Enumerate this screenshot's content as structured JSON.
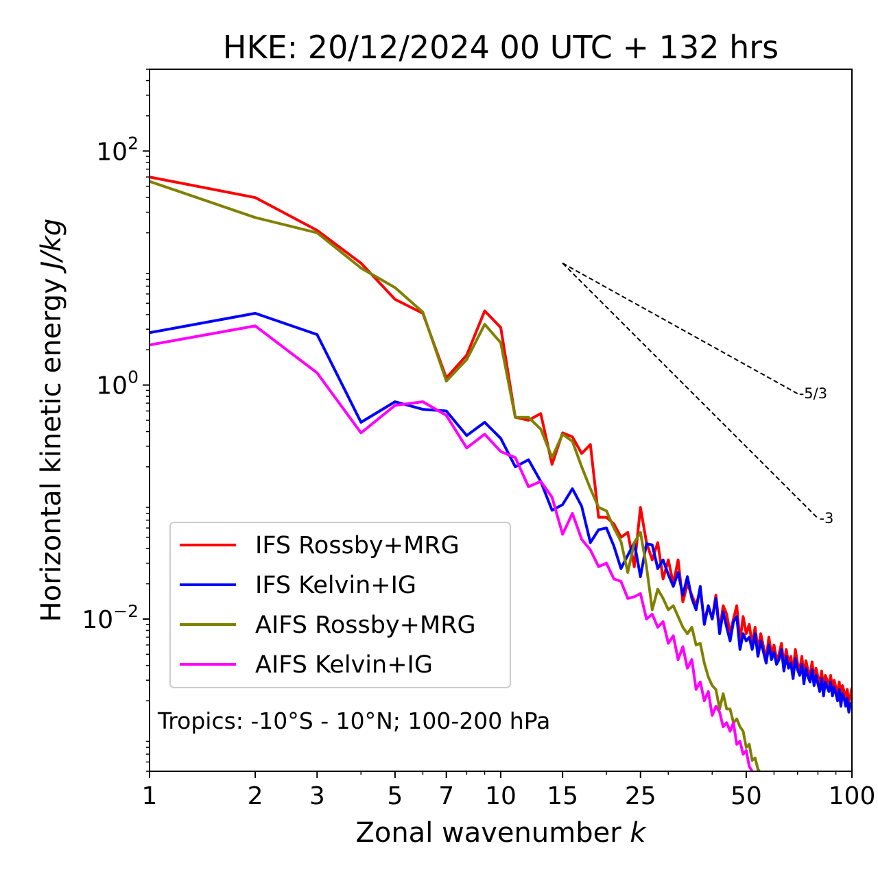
{
  "chart_data": {
    "type": "line",
    "title": "HKE: 20/12/2024 00 UTC + 132 hrs",
    "xlabel": "Zonal wavenumber ",
    "xlabel_italic": "k",
    "ylabel": "Horizontal kinetic energy ",
    "ylabel_italic": "J/kg",
    "xscale": "log",
    "yscale": "log",
    "xlim": [
      1,
      100
    ],
    "ylim": [
      0.0005,
      500
    ],
    "xticks": [
      1,
      2,
      3,
      5,
      7,
      10,
      15,
      25,
      50,
      100
    ],
    "xtick_labels": [
      "1",
      "2",
      "3",
      "5",
      "7",
      "10",
      "15",
      "25",
      "50",
      "100"
    ],
    "yticks": [
      0.01,
      1,
      100
    ],
    "ytick_labels": [
      {
        "base": "10",
        "exp": "−2"
      },
      {
        "base": "10",
        "exp": "0"
      },
      {
        "base": "10",
        "exp": "2"
      }
    ],
    "grid": false,
    "legend_position": "lower-left",
    "annotation": "Tropics: -10°S - 10°N; 100-200 hPa",
    "reference_slopes": [
      {
        "label": "-5/3",
        "slope": -1.6667,
        "x_start": 15,
        "x_end": 70,
        "y_start": 11
      },
      {
        "label": "-3",
        "slope": -3,
        "x_start": 15,
        "x_end": 80,
        "y_start": 11
      }
    ],
    "series": [
      {
        "name": "IFS Rossby+MRG",
        "color": "#ff0000",
        "x": [
          1,
          2,
          3,
          4,
          5,
          6,
          7,
          8,
          9,
          10,
          11,
          12,
          13,
          14,
          15,
          16,
          17,
          18,
          19,
          20,
          21,
          22,
          23,
          24,
          25,
          26,
          27,
          28,
          29,
          30,
          31,
          32,
          33,
          34,
          35,
          36,
          37,
          38,
          39,
          40,
          41,
          42,
          43,
          44,
          45,
          46,
          47,
          48,
          49,
          50,
          51,
          52,
          53,
          54,
          55,
          56,
          57,
          58,
          59,
          60,
          61,
          62,
          63,
          64,
          65,
          66,
          67,
          68,
          69,
          70,
          71,
          72,
          73,
          74,
          75,
          76,
          77,
          78,
          79,
          80,
          81,
          82,
          83,
          84,
          85,
          86,
          87,
          88,
          89,
          90,
          91,
          92,
          93,
          94,
          95,
          96,
          97,
          98,
          99,
          100
        ],
        "y": [
          60,
          40,
          21,
          11,
          5.4,
          4.1,
          1.15,
          1.8,
          4.3,
          3.1,
          0.53,
          0.5,
          0.57,
          0.21,
          0.39,
          0.36,
          0.26,
          0.31,
          0.074,
          0.074,
          0.065,
          0.05,
          0.055,
          0.028,
          0.09,
          0.045,
          0.032,
          0.045,
          0.022,
          0.032,
          0.02,
          0.032,
          0.014,
          0.02,
          0.016,
          0.013,
          0.018,
          0.0095,
          0.013,
          0.01,
          0.016,
          0.008,
          0.013,
          0.011,
          0.0075,
          0.01,
          0.013,
          0.0065,
          0.0105,
          0.0075,
          0.009,
          0.006,
          0.0085,
          0.0055,
          0.0075,
          0.0058,
          0.0045,
          0.007,
          0.005,
          0.006,
          0.0045,
          0.005,
          0.0062,
          0.004,
          0.0055,
          0.0042,
          0.0048,
          0.0034,
          0.0055,
          0.0042,
          0.0036,
          0.0048,
          0.0032,
          0.0044,
          0.0036,
          0.0033,
          0.0043,
          0.003,
          0.0038,
          0.0032,
          0.0028,
          0.0036,
          0.0025,
          0.0033,
          0.003,
          0.0027,
          0.0033,
          0.0025,
          0.003,
          0.0026,
          0.0023,
          0.0029,
          0.0021,
          0.0027,
          0.0024,
          0.0021,
          0.0025,
          0.0019,
          0.0022,
          0.0026
        ]
      },
      {
        "name": "IFS Kelvin+IG",
        "color": "#0000ff",
        "x": [
          1,
          2,
          3,
          4,
          5,
          6,
          7,
          8,
          9,
          10,
          11,
          12,
          13,
          14,
          15,
          16,
          17,
          18,
          19,
          20,
          21,
          22,
          23,
          24,
          25,
          26,
          27,
          28,
          29,
          30,
          31,
          32,
          33,
          34,
          35,
          36,
          37,
          38,
          39,
          40,
          41,
          42,
          43,
          44,
          45,
          46,
          47,
          48,
          49,
          50,
          51,
          52,
          53,
          54,
          55,
          56,
          57,
          58,
          59,
          60,
          61,
          62,
          63,
          64,
          65,
          66,
          67,
          68,
          69,
          70,
          71,
          72,
          73,
          74,
          75,
          76,
          77,
          78,
          79,
          80,
          81,
          82,
          83,
          84,
          85,
          86,
          87,
          88,
          89,
          90,
          91,
          92,
          93,
          94,
          95,
          96,
          97,
          98,
          99,
          100
        ],
        "y": [
          2.8,
          4.1,
          2.7,
          0.48,
          0.72,
          0.62,
          0.6,
          0.37,
          0.48,
          0.35,
          0.2,
          0.23,
          0.15,
          0.085,
          0.095,
          0.13,
          0.092,
          0.045,
          0.058,
          0.06,
          0.042,
          0.027,
          0.035,
          0.045,
          0.023,
          0.044,
          0.043,
          0.027,
          0.032,
          0.024,
          0.019,
          0.025,
          0.016,
          0.023,
          0.015,
          0.012,
          0.019,
          0.009,
          0.013,
          0.01,
          0.015,
          0.0075,
          0.0115,
          0.0085,
          0.0065,
          0.0095,
          0.0105,
          0.0055,
          0.0075,
          0.0065,
          0.007,
          0.0055,
          0.0075,
          0.0048,
          0.0065,
          0.0052,
          0.0042,
          0.006,
          0.0045,
          0.0052,
          0.0041,
          0.0045,
          0.0055,
          0.0036,
          0.0048,
          0.0038,
          0.0042,
          0.0031,
          0.0046,
          0.0037,
          0.0033,
          0.0041,
          0.0028,
          0.0038,
          0.0032,
          0.0029,
          0.0037,
          0.0027,
          0.0033,
          0.0028,
          0.0024,
          0.0031,
          0.0022,
          0.0029,
          0.0026,
          0.0024,
          0.0029,
          0.0022,
          0.0026,
          0.0023,
          0.002,
          0.0025,
          0.0018,
          0.0023,
          0.0021,
          0.0018,
          0.0021,
          0.0016,
          0.0019,
          0.0018
        ]
      },
      {
        "name": "AIFS Rossby+MRG",
        "color": "#808000",
        "x": [
          1,
          2,
          3,
          4,
          5,
          6,
          7,
          8,
          9,
          10,
          11,
          12,
          13,
          14,
          15,
          16,
          17,
          18,
          19,
          20,
          21,
          22,
          23,
          24,
          25,
          26,
          27,
          28,
          29,
          30,
          31,
          32,
          33,
          34,
          35,
          36,
          37,
          38,
          39,
          40,
          41,
          42,
          43,
          44,
          45,
          46,
          47,
          48,
          49,
          50,
          51,
          52,
          53,
          54,
          55,
          56,
          57,
          58,
          59,
          60
        ],
        "y": [
          55,
          27,
          20,
          10,
          6.8,
          4.2,
          1.08,
          1.65,
          3.3,
          2.3,
          0.53,
          0.53,
          0.42,
          0.24,
          0.38,
          0.33,
          0.2,
          0.13,
          0.09,
          0.084,
          0.06,
          0.046,
          0.025,
          0.045,
          0.055,
          0.028,
          0.012,
          0.018,
          0.015,
          0.012,
          0.013,
          0.0105,
          0.0085,
          0.0075,
          0.0085,
          0.006,
          0.0062,
          0.0042,
          0.0032,
          0.0027,
          0.0025,
          0.0017,
          0.0023,
          0.0017,
          0.0017,
          0.0013,
          0.0014,
          0.0012,
          0.0011,
          0.0008,
          0.00085,
          0.00062,
          0.00065,
          0.00052,
          0.00048,
          0.00042,
          0.00045,
          0.00035,
          0.00032,
          0.00028
        ]
      },
      {
        "name": "AIFS Kelvin+IG",
        "color": "#ff00ff",
        "x": [
          1,
          2,
          3,
          4,
          5,
          6,
          7,
          8,
          9,
          10,
          11,
          12,
          13,
          14,
          15,
          16,
          17,
          18,
          19,
          20,
          21,
          22,
          23,
          24,
          25,
          26,
          27,
          28,
          29,
          30,
          31,
          32,
          33,
          34,
          35,
          36,
          37,
          38,
          39,
          40,
          41,
          42,
          43,
          44,
          45,
          46,
          47,
          48,
          49,
          50,
          51,
          52,
          53
        ],
        "y": [
          2.2,
          3.2,
          1.27,
          0.39,
          0.67,
          0.72,
          0.55,
          0.29,
          0.38,
          0.27,
          0.24,
          0.135,
          0.15,
          0.11,
          0.053,
          0.08,
          0.048,
          0.039,
          0.028,
          0.03,
          0.022,
          0.021,
          0.015,
          0.0155,
          0.0165,
          0.01,
          0.011,
          0.0085,
          0.0095,
          0.0062,
          0.0072,
          0.0045,
          0.0058,
          0.0038,
          0.0045,
          0.0025,
          0.0029,
          0.002,
          0.0024,
          0.0015,
          0.0018,
          0.0016,
          0.0012,
          0.0013,
          0.0011,
          0.0013,
          0.00085,
          0.0009,
          0.0007,
          0.00075,
          0.00055,
          0.0005,
          0.00045
        ]
      }
    ]
  }
}
